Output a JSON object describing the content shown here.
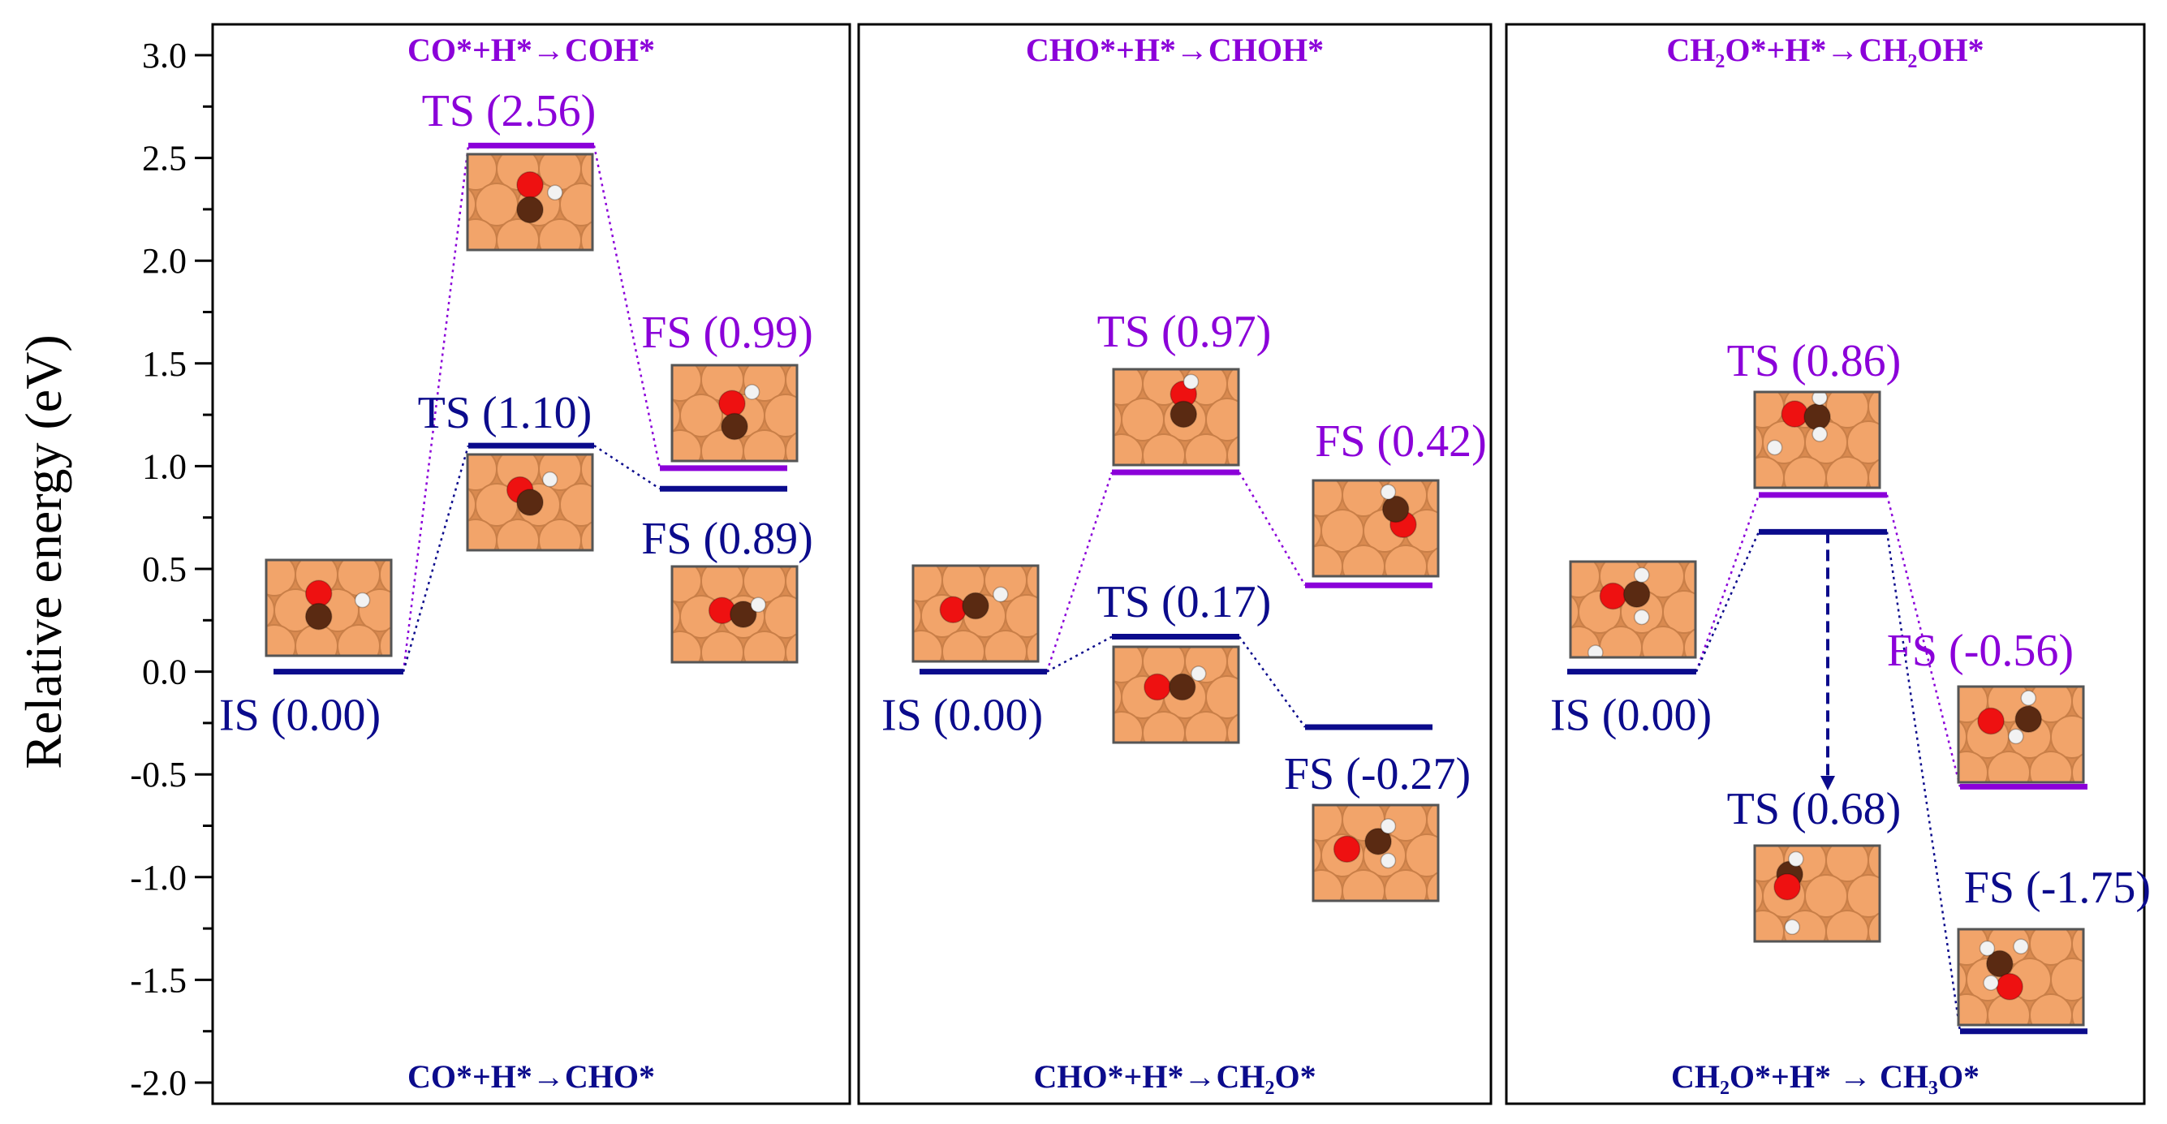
{
  "chart_data": {
    "type": "energy-profile",
    "ylabel": "Relative energy (eV)",
    "ylim": [
      -2.0,
      3.0
    ],
    "yticks": [
      "3.0",
      "2.5",
      "2.0",
      "1.5",
      "1.0",
      "0.5",
      "0.0",
      "-0.5",
      "-1.0",
      "-1.5",
      "-2.0"
    ],
    "ytick_values": [
      3.0,
      2.5,
      2.0,
      1.5,
      1.0,
      0.5,
      0.0,
      -0.5,
      -1.0,
      -1.5,
      -2.0
    ],
    "colors": {
      "path_a": "#8B00D9",
      "path_b": "#0B0B8C",
      "surface": "#F2A46A",
      "oxygen": "#EE1111",
      "carbon": "#5A2A12",
      "hydrogen": "#F2F2F2"
    },
    "panels": [
      {
        "top_title": "CO*+H*→COH*",
        "bottom_title": "CO*+H*→CHO*",
        "levels": [
          {
            "series": "path_b",
            "stage": "IS",
            "value": 0.0,
            "label": "IS (0.00)"
          },
          {
            "series": "path_a",
            "stage": "TS",
            "value": 2.56,
            "label": "TS (2.56)"
          },
          {
            "series": "path_a",
            "stage": "FS",
            "value": 0.99,
            "label": "FS (0.99)"
          },
          {
            "series": "path_b",
            "stage": "TS",
            "value": 1.1,
            "label": "TS (1.10)"
          },
          {
            "series": "path_b",
            "stage": "FS",
            "value": 0.89,
            "label": "FS (0.89)"
          }
        ]
      },
      {
        "top_title": "CHO*+H*→CHOH*",
        "bottom_title": "CHO*+H*→CH₂O*",
        "levels": [
          {
            "series": "path_b",
            "stage": "IS",
            "value": 0.0,
            "label": "IS (0.00)"
          },
          {
            "series": "path_a",
            "stage": "TS",
            "value": 0.97,
            "label": "TS (0.97)"
          },
          {
            "series": "path_a",
            "stage": "FS",
            "value": 0.42,
            "label": "FS (0.42)"
          },
          {
            "series": "path_b",
            "stage": "TS",
            "value": 0.17,
            "label": "TS (0.17)"
          },
          {
            "series": "path_b",
            "stage": "FS",
            "value": -0.27,
            "label": "FS (-0.27)"
          }
        ]
      },
      {
        "top_title": "CH₂O*+H*→CH₂OH*",
        "bottom_title": "CH₂O*+H* → CH₃O*",
        "levels": [
          {
            "series": "path_b",
            "stage": "IS",
            "value": 0.0,
            "label": "IS (0.00)"
          },
          {
            "series": "path_a",
            "stage": "TS",
            "value": 0.86,
            "label": "TS (0.86)"
          },
          {
            "series": "path_a",
            "stage": "FS",
            "value": -0.56,
            "label": "FS (-0.56)"
          },
          {
            "series": "path_b",
            "stage": "TS",
            "value": 0.68,
            "label": "TS (0.68)"
          },
          {
            "series": "path_b",
            "stage": "FS",
            "value": -1.75,
            "label": "FS (-1.75)"
          }
        ]
      }
    ]
  }
}
